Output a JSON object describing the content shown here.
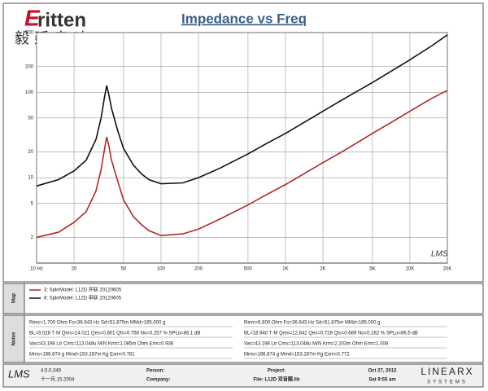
{
  "header": {
    "logo": "ritten",
    "brand": "毅廷音响"
  },
  "chart_data": {
    "type": "line",
    "title": "Impedance vs Freq",
    "x": [
      10,
      15,
      20,
      25,
      30,
      33,
      35,
      36.6,
      38,
      40,
      45,
      50,
      60,
      70,
      80,
      100,
      150,
      200,
      300,
      500,
      700,
      1000,
      2000,
      3000,
      5000,
      7000,
      10000,
      15000,
      20000
    ],
    "series": [
      {
        "name": "3: SpkrModel: L12D 并联 20120605",
        "color": "#b0282c",
        "values": [
          2,
          2.3,
          3,
          4,
          7,
          12.5,
          21,
          30,
          24,
          16,
          9,
          5.5,
          3.5,
          2.8,
          2.4,
          2.1,
          2.2,
          2.5,
          3.3,
          4.8,
          6.3,
          8.3,
          15,
          21,
          33,
          44,
          60,
          85,
          105
        ]
      },
      {
        "name": "8: SpkrModel: L12D 串联 20120605",
        "color": "#111111",
        "values": [
          8,
          9.5,
          12,
          16,
          28,
          50,
          85,
          120,
          95,
          65,
          35,
          22,
          14,
          11,
          9.5,
          8.5,
          8.7,
          10,
          13,
          19,
          25,
          33,
          60,
          85,
          130,
          175,
          240,
          350,
          470
        ]
      }
    ],
    "xlim": [
      10,
      20000
    ],
    "ylim": [
      1,
      500
    ],
    "xticks": [
      {
        "value": 10,
        "label": "10 Hz"
      },
      20,
      50,
      100,
      200,
      500,
      {
        "value": 1000,
        "label": "1K"
      },
      {
        "value": 2000,
        "label": "2K"
      },
      {
        "value": 5000,
        "label": "5K"
      },
      {
        "value": 10000,
        "label": "10K"
      },
      {
        "value": 20000,
        "label": "20K"
      }
    ],
    "yticks": [
      2,
      5,
      10,
      20,
      50,
      100,
      200,
      500
    ],
    "log_x": true,
    "log_y": true,
    "grid": true,
    "watermark": "LMS"
  },
  "map_label": "Map",
  "notes": {
    "label": "Notes",
    "left": [
      "Revc=1.700 Ohm  Fo=36.643 Hz  Sd=51.875m  MMd=165.000 g",
      "BL=9.028 T·M  Qms=14.021  Qes=0.801  Qts=0.758  No=0.257 %  SPLo=86.1 dB",
      "Vas=43.198 Ltr  Cms=113.048u M/N  Krm=1.085m Ohm  Erm=0.936",
      "Mms=166.874 g  Mmd=153.287m Kg  Exm=0.781"
    ],
    "right": [
      "Revc=6.800 Ohm  Fo=36.643 Hz  Sd=51.875m  MMd=165.000 g",
      "BL=18.940 T·M  Qms=12.642  Qes=0.728  Qts=0.689  No=0.282 %  SPLo=86.5 dB",
      "Vas=43.198 Ltr  Cms=113.048u M/N  Krm=2.203m Ohm  Erm=1.008",
      "Mms=166.874 g  Mmd=153.287m Kg  Exm=0.772"
    ]
  },
  "footer": {
    "app": "LMS",
    "version": "4.5.0.349",
    "build_date": "十一月.15.2004",
    "person": "Person:",
    "company": "Company:",
    "project": "Project:",
    "file": "File: L12D 双音圈.lib",
    "date": "Oct 27, 2012",
    "time": "Sat 9:55 am",
    "vendor": "LINEARX",
    "vendor_sub": "SYSTEMS"
  }
}
